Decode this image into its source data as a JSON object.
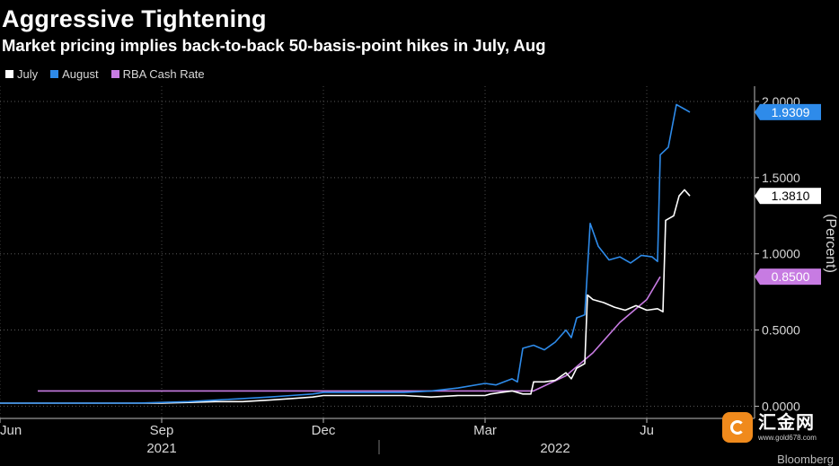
{
  "chart_data": {
    "type": "line",
    "title": "Aggressive Tightening",
    "subtitle": "Market pricing implies back-to-back 50-basis-point hikes in July, Aug",
    "ylabel": "(Percent)",
    "ylim": [
      -0.08,
      2.1
    ],
    "x_month_range": [
      0,
      14
    ],
    "y_ticks": [
      "2.0000",
      "1.5000",
      "1.0000",
      "0.5000",
      "0.0000"
    ],
    "y_tick_values": [
      2.0,
      1.5,
      1.0,
      0.5,
      0.0
    ],
    "x_tick_labels": [
      {
        "label": "Jun",
        "month": 0
      },
      {
        "label": "Sep",
        "month": 3
      },
      {
        "label": "Dec",
        "month": 6
      },
      {
        "label": "Mar",
        "month": 9
      },
      {
        "label": "Ju",
        "month": 12
      }
    ],
    "year_labels": [
      {
        "label": "2021",
        "month": 3
      },
      {
        "label": "2022",
        "month": 10.3
      }
    ],
    "year_divider_month": 7,
    "series": [
      {
        "name": "July",
        "color": "#ffffff",
        "last_value": "1.3810",
        "points": [
          [
            0,
            0.02
          ],
          [
            0.5,
            0.02
          ],
          [
            1,
            0.02
          ],
          [
            1.5,
            0.02
          ],
          [
            2,
            0.02
          ],
          [
            2.5,
            0.02
          ],
          [
            3,
            0.02
          ],
          [
            3.5,
            0.025
          ],
          [
            4,
            0.03
          ],
          [
            4.5,
            0.03
          ],
          [
            5,
            0.04
          ],
          [
            5.4,
            0.05
          ],
          [
            5.8,
            0.06
          ],
          [
            6,
            0.07
          ],
          [
            6.5,
            0.07
          ],
          [
            7,
            0.07
          ],
          [
            7.5,
            0.07
          ],
          [
            8,
            0.06
          ],
          [
            8.5,
            0.07
          ],
          [
            8.9,
            0.07
          ],
          [
            9,
            0.07
          ],
          [
            9.1,
            0.08
          ],
          [
            9.3,
            0.09
          ],
          [
            9.5,
            0.1
          ],
          [
            9.7,
            0.08
          ],
          [
            9.85,
            0.08
          ],
          [
            9.9,
            0.16
          ],
          [
            10.1,
            0.16
          ],
          [
            10.3,
            0.17
          ],
          [
            10.5,
            0.22
          ],
          [
            10.6,
            0.18
          ],
          [
            10.7,
            0.25
          ],
          [
            10.85,
            0.28
          ],
          [
            10.9,
            0.73
          ],
          [
            11.0,
            0.7
          ],
          [
            11.2,
            0.68
          ],
          [
            11.4,
            0.65
          ],
          [
            11.6,
            0.63
          ],
          [
            11.8,
            0.66
          ],
          [
            12.0,
            0.63
          ],
          [
            12.2,
            0.64
          ],
          [
            12.3,
            0.62
          ],
          [
            12.35,
            1.22
          ],
          [
            12.5,
            1.25
          ],
          [
            12.6,
            1.38
          ],
          [
            12.7,
            1.42
          ],
          [
            12.8,
            1.38
          ]
        ]
      },
      {
        "name": "August",
        "color": "#2e8bea",
        "last_value": "1.9309",
        "points": [
          [
            0,
            0.02
          ],
          [
            0.5,
            0.02
          ],
          [
            1,
            0.02
          ],
          [
            1.5,
            0.02
          ],
          [
            2,
            0.02
          ],
          [
            2.5,
            0.02
          ],
          [
            3,
            0.025
          ],
          [
            3.5,
            0.03
          ],
          [
            4,
            0.04
          ],
          [
            4.5,
            0.05
          ],
          [
            5,
            0.06
          ],
          [
            5.4,
            0.07
          ],
          [
            5.8,
            0.08
          ],
          [
            6,
            0.09
          ],
          [
            6.5,
            0.09
          ],
          [
            7,
            0.09
          ],
          [
            7.5,
            0.09
          ],
          [
            8,
            0.1
          ],
          [
            8.5,
            0.12
          ],
          [
            9,
            0.15
          ],
          [
            9.2,
            0.14
          ],
          [
            9.5,
            0.18
          ],
          [
            9.6,
            0.16
          ],
          [
            9.7,
            0.38
          ],
          [
            9.9,
            0.4
          ],
          [
            10.1,
            0.37
          ],
          [
            10.3,
            0.42
          ],
          [
            10.5,
            0.5
          ],
          [
            10.6,
            0.45
          ],
          [
            10.7,
            0.58
          ],
          [
            10.85,
            0.6
          ],
          [
            10.95,
            1.2
          ],
          [
            11.1,
            1.05
          ],
          [
            11.3,
            0.96
          ],
          [
            11.5,
            0.98
          ],
          [
            11.7,
            0.94
          ],
          [
            11.9,
            0.99
          ],
          [
            12.1,
            0.98
          ],
          [
            12.2,
            0.95
          ],
          [
            12.25,
            1.65
          ],
          [
            12.4,
            1.7
          ],
          [
            12.55,
            1.98
          ],
          [
            12.7,
            1.95
          ],
          [
            12.8,
            1.93
          ]
        ]
      },
      {
        "name": "RBA Cash Rate",
        "color": "#c77be2",
        "last_value": "0.8500",
        "points": [
          [
            0.7,
            0.1
          ],
          [
            9.9,
            0.1
          ],
          [
            10.5,
            0.2
          ],
          [
            11.0,
            0.35
          ],
          [
            11.5,
            0.55
          ],
          [
            12.0,
            0.7
          ],
          [
            12.25,
            0.85
          ]
        ]
      }
    ]
  },
  "watermark": {
    "name": "汇金网",
    "url": "www.gold678.com"
  },
  "source_text": "Bloomberg"
}
